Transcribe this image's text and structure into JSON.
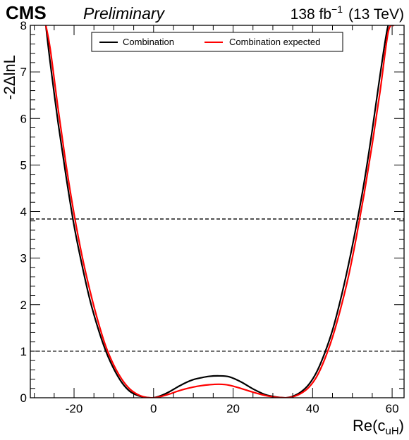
{
  "header": {
    "experiment": "CMS",
    "status": "Preliminary",
    "lumi_value": "138 fb",
    "lumi_exponent": "−1",
    "energy": "(13 TeV)"
  },
  "chart_data": {
    "type": "line",
    "xlabel_main": "Re(c",
    "xlabel_sub": "uH",
    "xlabel_close": ")",
    "ylabel": "-2ΔlnL",
    "xlim": [
      -31,
      63
    ],
    "ylim": [
      0,
      8
    ],
    "x_ticks": [
      -20,
      0,
      20,
      40,
      60
    ],
    "x_tick_labels": [
      "-20",
      "0",
      "20",
      "40",
      "60"
    ],
    "y_ticks": [
      0,
      1,
      2,
      3,
      4,
      5,
      6,
      7,
      8
    ],
    "y_tick_labels": [
      "0",
      "1",
      "2",
      "3",
      "4",
      "5",
      "6",
      "7",
      "8"
    ],
    "reference_lines": [
      {
        "y": 1.0,
        "style": "dashed"
      },
      {
        "y": 3.84,
        "style": "dashed"
      }
    ],
    "legend_position": "top-center",
    "series": [
      {
        "name": "Combination",
        "color": "#000000",
        "x": [
          -27.1,
          -26,
          -24,
          -22,
          -20,
          -18,
          -16,
          -14,
          -12,
          -10,
          -8,
          -6,
          -4,
          -2,
          0,
          2,
          4,
          6,
          8,
          10,
          12,
          14,
          16.5,
          19,
          22,
          25,
          28,
          30,
          32,
          33.5,
          35,
          37,
          39,
          41,
          43,
          45,
          47,
          49,
          51,
          53,
          55,
          57,
          59,
          60.3
        ],
        "y": [
          8.0,
          7.2,
          5.9,
          4.75,
          3.7,
          2.85,
          2.1,
          1.5,
          1.0,
          0.62,
          0.33,
          0.14,
          0.05,
          0.01,
          0.0,
          0.05,
          0.13,
          0.23,
          0.32,
          0.39,
          0.43,
          0.46,
          0.47,
          0.45,
          0.34,
          0.19,
          0.07,
          0.03,
          0.005,
          0.0,
          0.03,
          0.12,
          0.28,
          0.55,
          0.95,
          1.45,
          2.1,
          2.85,
          3.7,
          4.65,
          5.75,
          6.95,
          8.0,
          8.0
        ]
      },
      {
        "name": "Combination expected",
        "color": "#ff0000",
        "x": [
          -27.1,
          -26,
          -24,
          -22,
          -20,
          -18,
          -16,
          -14,
          -12,
          -10,
          -8,
          -6,
          -4,
          -2,
          0,
          2,
          4,
          6,
          8,
          10,
          12,
          14,
          16.5,
          19,
          22,
          25,
          28,
          30,
          32,
          33.5,
          35,
          37,
          39,
          41,
          43,
          45,
          47,
          49,
          51,
          53,
          55,
          57,
          59,
          60.4
        ],
        "y": [
          8.0,
          7.5,
          6.2,
          5.0,
          3.95,
          3.05,
          2.3,
          1.65,
          1.1,
          0.7,
          0.4,
          0.19,
          0.07,
          0.01,
          0.0,
          0.03,
          0.08,
          0.14,
          0.19,
          0.23,
          0.26,
          0.28,
          0.29,
          0.27,
          0.2,
          0.12,
          0.05,
          0.02,
          0.004,
          0.0,
          0.02,
          0.09,
          0.22,
          0.45,
          0.82,
          1.3,
          1.9,
          2.6,
          3.45,
          4.4,
          5.45,
          6.6,
          7.85,
          8.0
        ]
      }
    ]
  }
}
